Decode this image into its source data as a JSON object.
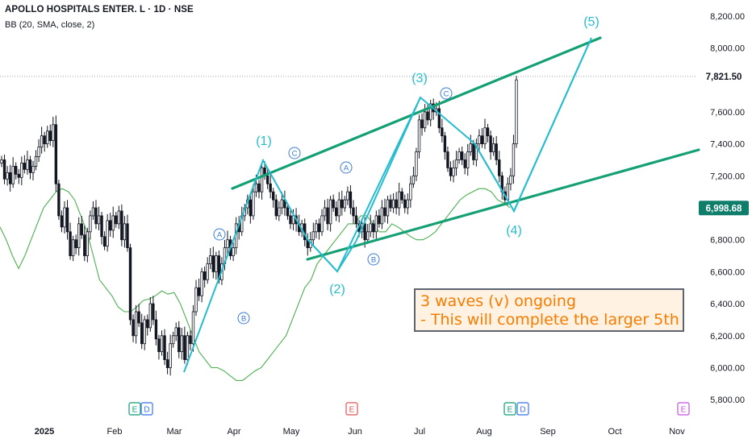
{
  "header": {
    "title": "APOLLO HOSPITALS ENTER. L · 1D · NSE",
    "indicator": "BB (20, SMA, close, 2)"
  },
  "chart_data": {
    "type": "candlestick",
    "symbol": "APOLLO HOSPITALS ENTER. L",
    "interval": "1D",
    "exchange": "NSE",
    "indicator": "BB (20, SMA, close, 2)",
    "ylim": [
      5750,
      8300
    ],
    "y_ticks": [
      "8,200.00",
      "8,000.00",
      "7,600.00",
      "7,400.00",
      "7,200.00",
      "6,800.00",
      "6,600.00",
      "6,400.00",
      "6,200.00",
      "6,000.00",
      "5,800.00"
    ],
    "x_ticks": [
      "2025",
      "Feb",
      "Mar",
      "Apr",
      "May",
      "Jun",
      "Jul",
      "Aug",
      "Sep",
      "Oct",
      "Nov"
    ],
    "price_labels": [
      {
        "value": 7821.5,
        "text": "7,821.50",
        "color": "#ffffff",
        "text_color": "#131722"
      },
      {
        "value": 6998.68,
        "text": "6,998.68",
        "color": "#0e7d6a",
        "text_color": "#ffffff"
      }
    ],
    "closes": [
      7300,
      7180,
      7220,
      7150,
      7260,
      7210,
      7190,
      7280,
      7240,
      7300,
      7220,
      7260,
      7320,
      7380,
      7450,
      7400,
      7480,
      7420,
      7520,
      7150,
      6950,
      6880,
      7000,
      6850,
      6700,
      6800,
      6750,
      6900,
      6830,
      6700,
      6850,
      6950,
      7000,
      6900,
      6950,
      6820,
      6760,
      6920,
      6860,
      6950,
      6900,
      6980,
      6800,
      6900,
      6750,
      6300,
      6200,
      6350,
      6280,
      6150,
      6300,
      6250,
      6400,
      6300,
      6180,
      6100,
      6200,
      6050,
      6000,
      6150,
      6200,
      6250,
      6100,
      6200,
      6050,
      6200,
      6150,
      6350,
      6500,
      6450,
      6600,
      6550,
      6650,
      6700,
      6600,
      6700,
      6550,
      6650,
      6750,
      6800,
      6700,
      6750,
      6900,
      6850,
      6950,
      7000,
      7050,
      6950,
      7100,
      7150,
      7100,
      7250,
      7200,
      7150,
      7100,
      7050,
      6950,
      7000,
      7050,
      7000,
      6950,
      6900,
      6950,
      6900,
      6850,
      6900,
      6800,
      6750,
      6800,
      6850,
      6900,
      6850,
      6950,
      7000,
      6900,
      7050,
      7000,
      6950,
      7050,
      7000,
      7050,
      7100,
      7000,
      6950,
      6900,
      6850,
      6900,
      6800,
      6850,
      6900,
      6850,
      6950,
      6900,
      7000,
      6950,
      7050,
      7000,
      7050,
      7000,
      7100,
      7050,
      7000,
      7050,
      7150,
      7200,
      7350,
      7550,
      7500,
      7600,
      7550,
      7650,
      7600,
      7620,
      7500,
      7450,
      7350,
      7250,
      7200,
      7250,
      7300,
      7350,
      7300,
      7250,
      7350,
      7400,
      7300,
      7400,
      7450,
      7400,
      7500,
      7450,
      7350,
      7400,
      7300,
      7200,
      7100,
      7050,
      7150,
      7200,
      7400,
      7800
    ],
    "bb_lower": [
      6880,
      6800,
      6700,
      6620,
      6700,
      6800,
      6900,
      7000,
      7050,
      7100,
      7120,
      7100,
      7050,
      6950,
      6850,
      6700,
      6550,
      6500,
      6450,
      6380,
      6350,
      6350,
      6380,
      6420,
      6430,
      6450,
      6480,
      6460,
      6470,
      6400,
      6300,
      6200,
      6100,
      6050,
      6000,
      6000,
      5980,
      5950,
      5920,
      5920,
      5950,
      5980,
      6000,
      6050,
      6100,
      6150,
      6200,
      6300,
      6400,
      6500,
      6550,
      6650,
      6700,
      6750,
      6800,
      6850,
      6900,
      6900,
      6950,
      6950,
      6900,
      6850,
      6850,
      6900,
      6880,
      6850,
      6820,
      6800,
      6800,
      6820,
      6850,
      6900,
      6950,
      7000,
      7050,
      7080,
      7100,
      7120,
      7120,
      7100,
      7050,
      7030,
      7000
    ],
    "elliott_labels": {
      "major": [
        "(1)",
        "(2)",
        "(3)",
        "(4)",
        "(5)"
      ],
      "minor": [
        "A",
        "B",
        "C"
      ]
    },
    "channel": {
      "upper": [
        {
          "date": "Apr-01",
          "value": 7190
        },
        {
          "date": "Sep-25",
          "value": 8070
        }
      ],
      "lower": [
        {
          "date": "May-08",
          "value": 6680
        },
        {
          "date": "Nov-15",
          "value": 7370
        }
      ]
    },
    "wave_path": [
      6000,
      7300,
      6620,
      7700,
      6980,
      8060
    ],
    "events": [
      "E",
      "D",
      "E",
      "E",
      "D",
      "E"
    ],
    "annotation": [
      "3 waves (v) ongoing",
      "- This will complete the larger 5th"
    ],
    "colors": {
      "up": "#26a69a",
      "down": "#131722",
      "candle": "#131722",
      "bb": "#4caf50",
      "channel": "#14a074",
      "wave": "#26bcd0",
      "earnings": "#0d9d75",
      "dividend": "#3772f0",
      "event": "#e55353",
      "future": "#c64fe8",
      "note_text": "#f57c00",
      "note_bg": "#fff2e3"
    }
  }
}
